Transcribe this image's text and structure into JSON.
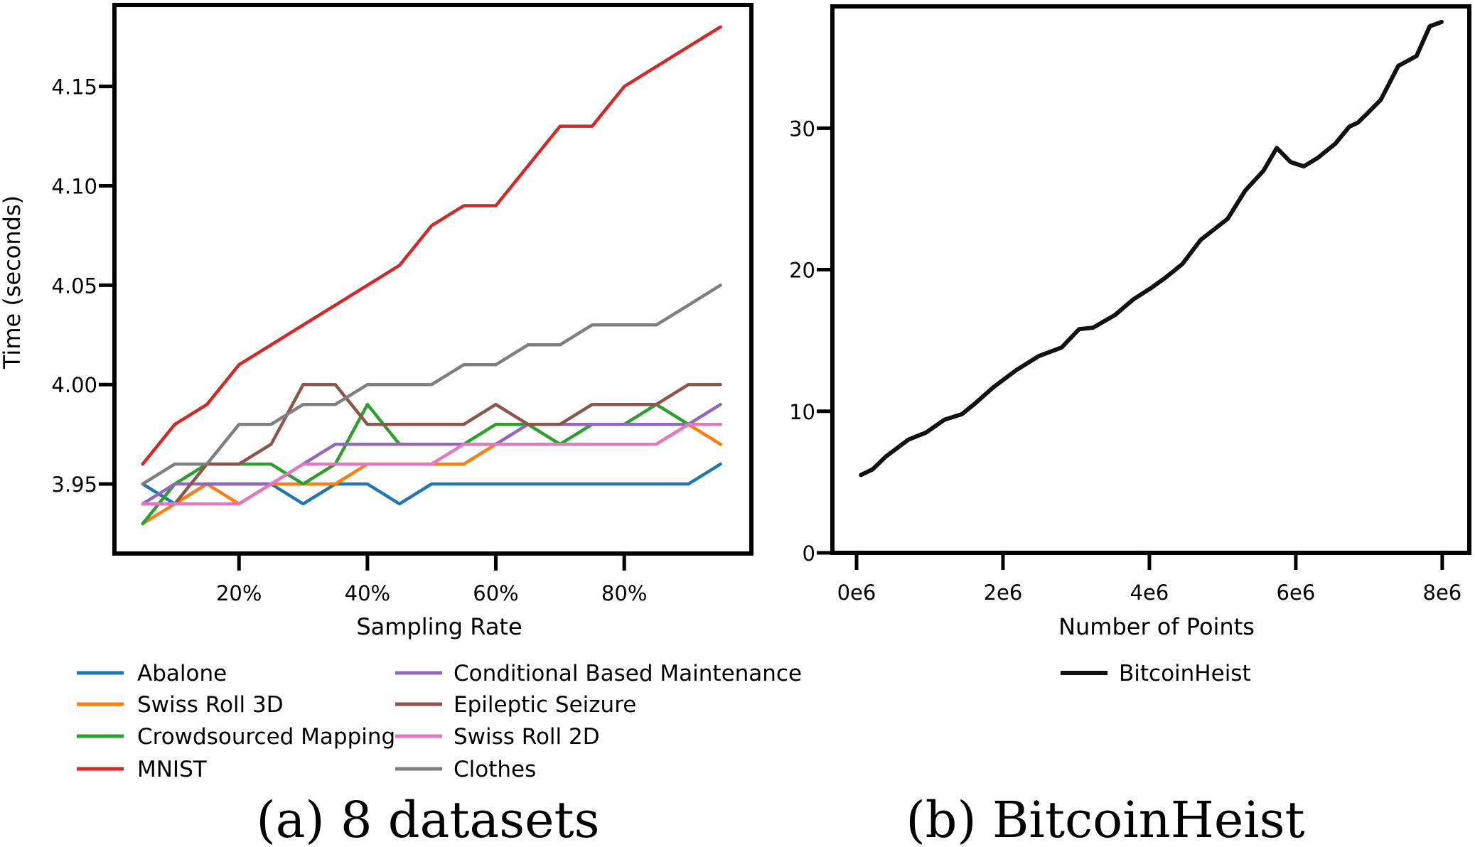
{
  "chart_data": [
    {
      "type": "line",
      "panel": "a",
      "caption": "(a) 8 datasets",
      "xlabel": "Sampling Rate",
      "ylabel": "Time (seconds)",
      "x": [
        5,
        10,
        15,
        20,
        25,
        30,
        35,
        40,
        45,
        50,
        55,
        60,
        65,
        70,
        75,
        80,
        85,
        90,
        95
      ],
      "x_unit": "%",
      "xlim": [
        0.6,
        99.8
      ],
      "ylim": [
        3.915,
        4.191
      ],
      "xticks": [
        20,
        40,
        60,
        80
      ],
      "xtick_labels": [
        "20%",
        "40%",
        "60%",
        "80%"
      ],
      "yticks": [
        3.95,
        4.0,
        4.05,
        4.1,
        4.15
      ],
      "ytick_labels": [
        "3.95",
        "4.00",
        "4.05",
        "4.10",
        "4.15"
      ],
      "grid": false,
      "legend_position": "bottom",
      "legend_columns": 2,
      "series": [
        {
          "name": "Abalone",
          "color": "#1f77b4",
          "values": [
            3.95,
            3.94,
            3.95,
            3.95,
            3.95,
            3.94,
            3.95,
            3.95,
            3.94,
            3.95,
            3.95,
            3.95,
            3.95,
            3.95,
            3.95,
            3.95,
            3.95,
            3.95,
            3.96
          ]
        },
        {
          "name": "Swiss Roll 3D",
          "color": "#ff7f0e",
          "values": [
            3.93,
            3.94,
            3.95,
            3.94,
            3.95,
            3.95,
            3.95,
            3.96,
            3.96,
            3.96,
            3.96,
            3.97,
            3.97,
            3.97,
            3.97,
            3.97,
            3.97,
            3.98,
            3.97
          ]
        },
        {
          "name": "Crowdsourced Mapping",
          "color": "#2ca02c",
          "values": [
            3.93,
            3.95,
            3.96,
            3.96,
            3.96,
            3.95,
            3.96,
            3.99,
            3.97,
            3.97,
            3.97,
            3.98,
            3.98,
            3.97,
            3.98,
            3.98,
            3.99,
            3.98,
            3.98
          ]
        },
        {
          "name": "MNIST",
          "color": "#d62728",
          "values": [
            3.96,
            3.98,
            3.99,
            4.01,
            4.02,
            4.03,
            4.04,
            4.05,
            4.06,
            4.08,
            4.09,
            4.09,
            4.11,
            4.13,
            4.13,
            4.15,
            4.16,
            4.17,
            4.18
          ]
        },
        {
          "name": "Conditional Based Maintenance",
          "color": "#9467bd",
          "values": [
            3.94,
            3.95,
            3.95,
            3.95,
            3.95,
            3.96,
            3.97,
            3.97,
            3.97,
            3.97,
            3.97,
            3.97,
            3.98,
            3.98,
            3.98,
            3.98,
            3.98,
            3.98,
            3.99
          ]
        },
        {
          "name": "Epileptic Seizure",
          "color": "#8c564b",
          "values": [
            3.94,
            3.94,
            3.96,
            3.96,
            3.97,
            4.0,
            4.0,
            3.98,
            3.98,
            3.98,
            3.98,
            3.99,
            3.98,
            3.98,
            3.99,
            3.99,
            3.99,
            4.0,
            4.0
          ]
        },
        {
          "name": "Swiss Roll 2D",
          "color": "#e377c2",
          "values": [
            3.94,
            3.94,
            3.94,
            3.94,
            3.95,
            3.96,
            3.96,
            3.96,
            3.96,
            3.96,
            3.97,
            3.97,
            3.97,
            3.97,
            3.97,
            3.97,
            3.97,
            3.98,
            3.98
          ]
        },
        {
          "name": "Clothes",
          "color": "#7f7f7f",
          "values": [
            3.95,
            3.96,
            3.96,
            3.98,
            3.98,
            3.99,
            3.99,
            4.0,
            4.0,
            4.0,
            4.01,
            4.01,
            4.02,
            4.02,
            4.03,
            4.03,
            4.03,
            4.04,
            4.05
          ]
        }
      ]
    },
    {
      "type": "line",
      "panel": "b",
      "caption": "(b) BitcoinHeist",
      "xlabel": "Number of Points",
      "ylabel": "",
      "xlim": [
        -330000,
        8370000
      ],
      "ylim": [
        0,
        38.6
      ],
      "xticks": [
        0,
        2000000,
        4000000,
        6000000,
        8000000
      ],
      "xtick_labels": [
        "0e6",
        "2e6",
        "4e6",
        "6e6",
        "8e6"
      ],
      "yticks": [
        0,
        10,
        20,
        30
      ],
      "ytick_labels": [
        "0",
        "10",
        "20",
        "30"
      ],
      "grid": false,
      "legend_position": "bottom",
      "series": [
        {
          "name": "BitcoinHeist",
          "color": "#111111",
          "x": [
            60000,
            220000,
            400000,
            710000,
            950000,
            1200000,
            1440000,
            1630000,
            1870000,
            2180000,
            2490000,
            2800000,
            3040000,
            3230000,
            3530000,
            3780000,
            4020000,
            4210000,
            4450000,
            4700000,
            5070000,
            5310000,
            5560000,
            5740000,
            5930000,
            6110000,
            6300000,
            6540000,
            6730000,
            6850000,
            6970000,
            7160000,
            7400000,
            7650000,
            7830000,
            7990000
          ],
          "values": [
            5.5,
            5.9,
            6.8,
            8.0,
            8.5,
            9.4,
            9.8,
            10.6,
            11.7,
            12.9,
            13.9,
            14.5,
            15.8,
            15.9,
            16.8,
            17.9,
            18.7,
            19.4,
            20.4,
            22.1,
            23.6,
            25.6,
            27.0,
            28.6,
            27.6,
            27.3,
            27.9,
            28.9,
            30.1,
            30.4,
            31.0,
            32.0,
            34.4,
            35.1,
            37.2,
            37.5
          ]
        }
      ]
    }
  ]
}
